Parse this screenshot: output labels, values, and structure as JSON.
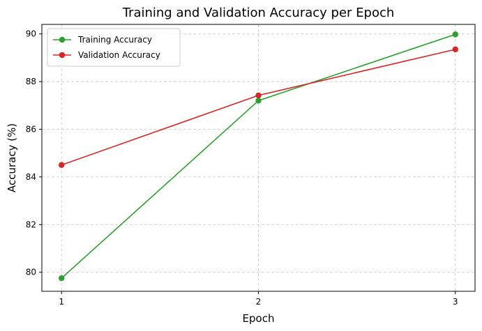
{
  "chart_data": {
    "type": "line",
    "title": "Training and Validation Accuracy per Epoch",
    "xlabel": "Epoch",
    "ylabel": "Accuracy (%)",
    "x": [
      1,
      2,
      3
    ],
    "xlim": [
      0.9,
      3.1
    ],
    "ylim": [
      79.2,
      90.4
    ],
    "xticks": [
      1,
      2,
      3
    ],
    "yticks": [
      80,
      82,
      84,
      86,
      88,
      90
    ],
    "grid": true,
    "legend_position": "top-left",
    "series": [
      {
        "name": "Training Accuracy",
        "color": "#2ca02c",
        "marker": "circle",
        "values": [
          79.75,
          87.2,
          89.98
        ]
      },
      {
        "name": "Validation Accuracy",
        "color": "#d62728",
        "marker": "circle",
        "values": [
          84.5,
          87.42,
          89.35
        ]
      }
    ]
  }
}
